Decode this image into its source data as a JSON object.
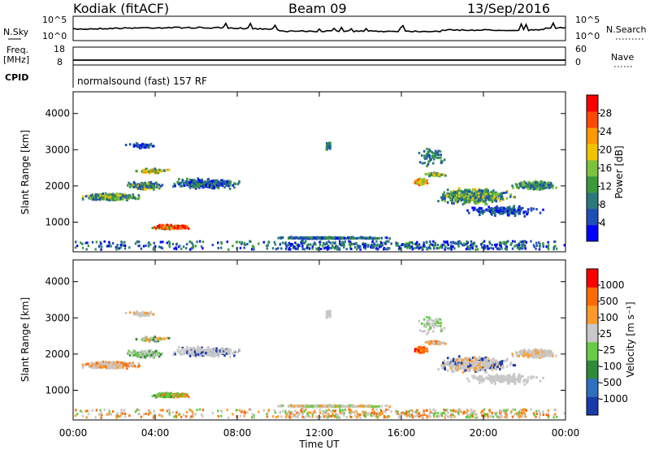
{
  "header": {
    "station": "Kodiak (fitACF)",
    "beam": "Beam 09",
    "date": "13/Sep/2016"
  },
  "strip_panels": {
    "nsky_label": "N.Sky",
    "nsky_ticks": [
      "10^5",
      "10^0"
    ],
    "nsearch_label": "N.Search",
    "nsearch_ticks": [
      "10^5",
      "10^0"
    ],
    "freq_label": "Freq.",
    "freq_unit": "[MHz]",
    "freq_ticks": [
      "18",
      "8"
    ],
    "nave_label": "Nave",
    "nave_ticks": [
      "60",
      "0"
    ],
    "cpid_label": "CPID",
    "cpid_text": "normalsound (fast) 157 RF"
  },
  "chart_data": [
    {
      "type": "heatmap",
      "name": "power",
      "ylabel": "Slant Range [km]",
      "yticks": [
        "4000",
        "3000",
        "2000",
        "1000"
      ],
      "ylim": [
        180,
        4600
      ],
      "xlim": [
        0,
        24
      ],
      "colorbar_label": "Power [dB]",
      "colorbar_ticks": [
        "28",
        "24",
        "20",
        "16",
        "12",
        "8",
        "4"
      ],
      "colors": [
        "#0000ff",
        "#1f4fb4",
        "#2a7a7a",
        "#3c9a3c",
        "#7cc23c",
        "#f2c400",
        "#ff9900",
        "#ff4a00",
        "#ff0000"
      ]
    },
    {
      "type": "heatmap",
      "name": "velocity",
      "ylabel": "Slant Range [km]",
      "yticks": [
        "4000",
        "3000",
        "2000",
        "1000"
      ],
      "ylim": [
        180,
        4600
      ],
      "xlim": [
        0,
        24
      ],
      "colorbar_label": "Velocity [m s⁻¹]",
      "colorbar_ticks": [
        "1000",
        "500",
        "100",
        "25",
        "-25",
        "-100",
        "-500",
        "-1000"
      ],
      "colors": [
        "#1a3aa8",
        "#2f6fc2",
        "#2e8b3a",
        "#66cc44",
        "#c8c8c8",
        "#ff9a2a",
        "#ff6a00",
        "#ff0000"
      ]
    }
  ],
  "xaxis": {
    "ticks": [
      "00:00",
      "04:00",
      "08:00",
      "12:00",
      "16:00",
      "20:00",
      "00:00"
    ],
    "label": "Time UT"
  }
}
